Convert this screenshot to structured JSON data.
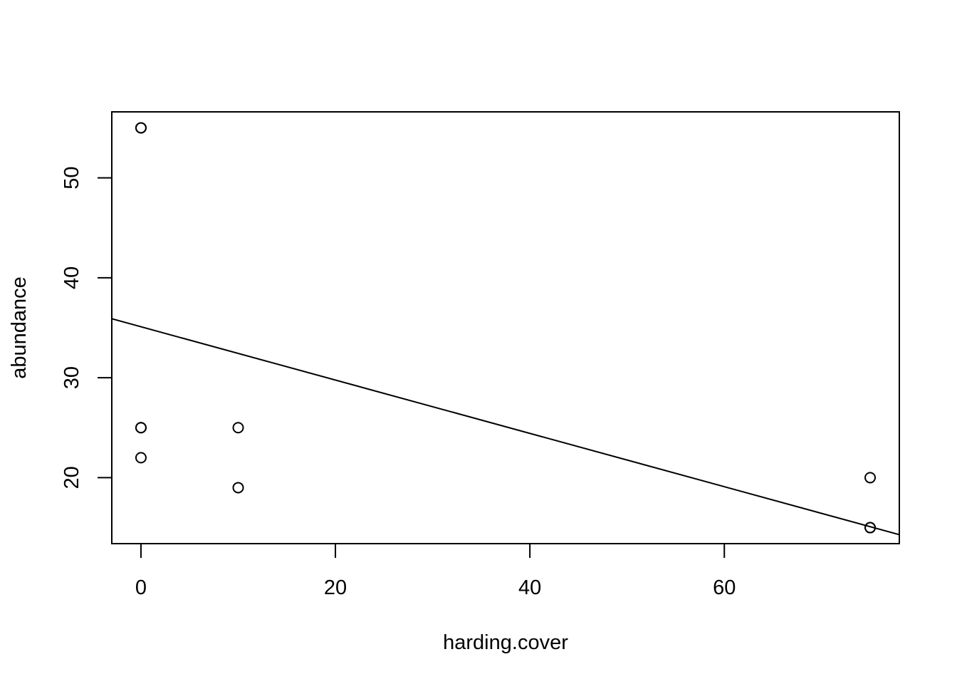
{
  "chart_data": {
    "type": "scatter",
    "title": "",
    "xlabel": "harding.cover",
    "ylabel": "abundance",
    "xlim": [
      -3,
      78
    ],
    "ylim": [
      13.4,
      56.6
    ],
    "xticks": [
      0,
      20,
      40,
      60
    ],
    "yticks": [
      20,
      30,
      40,
      50
    ],
    "points": [
      {
        "x": 0,
        "y": 55
      },
      {
        "x": 0,
        "y": 55
      },
      {
        "x": 0,
        "y": 25
      },
      {
        "x": 0,
        "y": 25
      },
      {
        "x": 0,
        "y": 22
      },
      {
        "x": 10,
        "y": 25
      },
      {
        "x": 10,
        "y": 19
      },
      {
        "x": 75,
        "y": 20
      },
      {
        "x": 75,
        "y": 15
      },
      {
        "x": 75,
        "y": 15
      }
    ],
    "regression_line": {
      "intercept": 35.1,
      "slope": -0.2667
    },
    "grid": false,
    "legend": "none"
  }
}
